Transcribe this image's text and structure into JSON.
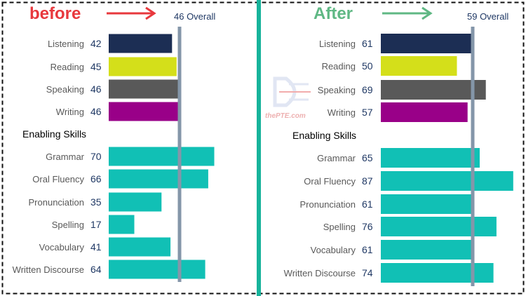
{
  "colors": {
    "divider": "#17b39b",
    "overall_line": "#8496a9",
    "before_title": "#e8383d",
    "after_title": "#5fb884",
    "listening": "#1c2e54",
    "reading": "#d4df1a",
    "speaking": "#595959",
    "writing": "#990088",
    "enabling": "#11c0b5"
  },
  "watermark": {
    "text": "thePTE.com"
  },
  "chart_data": [
    {
      "type": "bar",
      "orientation": "horizontal",
      "title": "before",
      "overall_label": "46 Overall",
      "overall": 46,
      "section_label": "Enabling Skills",
      "communicative": [
        {
          "label": "Listening",
          "value": 42,
          "color": "#1c2e54"
        },
        {
          "label": "Reading",
          "value": 45,
          "color": "#d4df1a"
        },
        {
          "label": "Speaking",
          "value": 46,
          "color": "#595959"
        },
        {
          "label": "Writing",
          "value": 46,
          "color": "#990088"
        }
      ],
      "enabling": [
        {
          "label": "Grammar",
          "value": 70
        },
        {
          "label": "Oral Fluency",
          "value": 66
        },
        {
          "label": "Pronunciation",
          "value": 35
        },
        {
          "label": "Spelling",
          "value": 17
        },
        {
          "label": "Vocabulary",
          "value": 41
        },
        {
          "label": "Written Discourse",
          "value": 64
        }
      ]
    },
    {
      "type": "bar",
      "orientation": "horizontal",
      "title": "After",
      "overall_label": "59 Overall",
      "overall": 59,
      "section_label": "Enabling Skills",
      "communicative": [
        {
          "label": "Listening",
          "value": 61,
          "color": "#1c2e54"
        },
        {
          "label": "Reading",
          "value": 50,
          "color": "#d4df1a"
        },
        {
          "label": "Speaking",
          "value": 69,
          "color": "#595959"
        },
        {
          "label": "Writing",
          "value": 57,
          "color": "#990088"
        }
      ],
      "enabling": [
        {
          "label": "Grammar",
          "value": 65
        },
        {
          "label": "Oral Fluency",
          "value": 87
        },
        {
          "label": "Pronunciation",
          "value": 61
        },
        {
          "label": "Spelling",
          "value": 76
        },
        {
          "label": "Vocabulary",
          "value": 61
        },
        {
          "label": "Written Discourse",
          "value": 74
        }
      ]
    }
  ]
}
